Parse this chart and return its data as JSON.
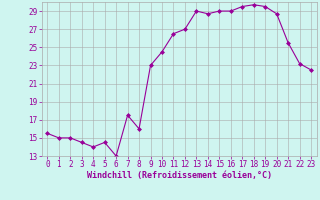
{
  "x": [
    0,
    1,
    2,
    3,
    4,
    5,
    6,
    7,
    8,
    9,
    10,
    11,
    12,
    13,
    14,
    15,
    16,
    17,
    18,
    19,
    20,
    21,
    22,
    23
  ],
  "y": [
    15.5,
    15.0,
    15.0,
    14.5,
    14.0,
    14.5,
    13.0,
    17.5,
    16.0,
    23.0,
    24.5,
    26.5,
    27.0,
    29.0,
    28.7,
    29.0,
    29.0,
    29.5,
    29.7,
    29.5,
    28.7,
    25.5,
    23.2,
    22.5
  ],
  "line_color": "#990099",
  "marker": "D",
  "marker_size": 2,
  "bg_color": "#cff5f0",
  "grid_color": "#aaaaaa",
  "xlabel": "Windchill (Refroidissement éolien,°C)",
  "ylim": [
    13,
    30
  ],
  "xlim": [
    -0.5,
    23.5
  ],
  "yticks": [
    13,
    15,
    17,
    19,
    21,
    23,
    25,
    27,
    29
  ],
  "xticks": [
    0,
    1,
    2,
    3,
    4,
    5,
    6,
    7,
    8,
    9,
    10,
    11,
    12,
    13,
    14,
    15,
    16,
    17,
    18,
    19,
    20,
    21,
    22,
    23
  ],
  "tick_fontsize": 5.5,
  "xlabel_fontsize": 6.0,
  "label_color": "#990099",
  "line_width": 0.8
}
